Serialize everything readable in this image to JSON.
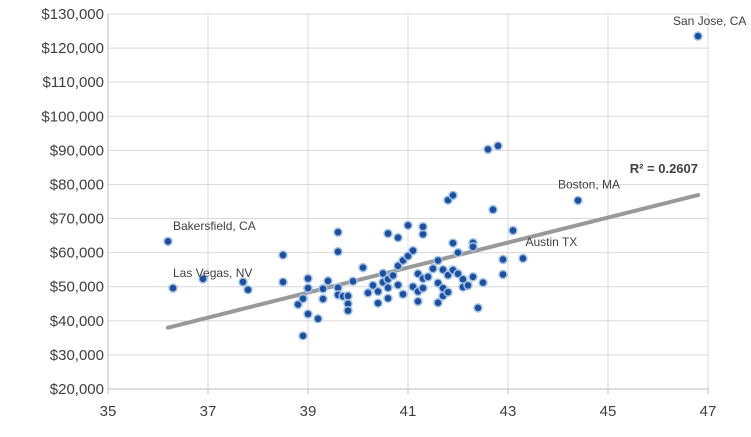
{
  "chart_data": {
    "type": "scatter",
    "title": "",
    "xlabel": "",
    "ylabel": "",
    "xlim": [
      35,
      47
    ],
    "ylim": [
      20000,
      130000
    ],
    "grid": true,
    "x_ticks": [
      {
        "value": 35,
        "label": "35"
      },
      {
        "value": 37,
        "label": "37"
      },
      {
        "value": 39,
        "label": "39"
      },
      {
        "value": 41,
        "label": "41"
      },
      {
        "value": 43,
        "label": "43"
      },
      {
        "value": 45,
        "label": "45"
      },
      {
        "value": 47,
        "label": "47"
      }
    ],
    "y_ticks": [
      {
        "value": 20000,
        "label": "$20,000"
      },
      {
        "value": 30000,
        "label": "$30,000"
      },
      {
        "value": 40000,
        "label": "$40,000"
      },
      {
        "value": 50000,
        "label": "$50,000"
      },
      {
        "value": 60000,
        "label": "$60,000"
      },
      {
        "value": 70000,
        "label": "$70,000"
      },
      {
        "value": 80000,
        "label": "$80,000"
      },
      {
        "value": 90000,
        "label": "$90,000"
      },
      {
        "value": 100000,
        "label": "$100,000"
      },
      {
        "value": 110000,
        "label": "$110,000"
      },
      {
        "value": 120000,
        "label": "$120,000"
      },
      {
        "value": 130000,
        "label": "$130,000"
      }
    ],
    "colors": {
      "point_fill": "#1f4e9c",
      "point_stroke": "#9fc3e6",
      "trendline": "#999999",
      "grid": "#d9d9d9",
      "axis": "#bfbfbf"
    },
    "points": [
      {
        "x": 36.2,
        "y": 63300
      },
      {
        "x": 36.3,
        "y": 49600
      },
      {
        "x": 36.9,
        "y": 52300
      },
      {
        "x": 37.7,
        "y": 51400
      },
      {
        "x": 37.8,
        "y": 49100
      },
      {
        "x": 38.5,
        "y": 59300
      },
      {
        "x": 38.5,
        "y": 51400
      },
      {
        "x": 38.8,
        "y": 44800
      },
      {
        "x": 38.9,
        "y": 35600
      },
      {
        "x": 38.9,
        "y": 46500
      },
      {
        "x": 39.0,
        "y": 49400
      },
      {
        "x": 39.0,
        "y": 52400
      },
      {
        "x": 39.0,
        "y": 42000
      },
      {
        "x": 39.0,
        "y": 49600
      },
      {
        "x": 39.2,
        "y": 40600
      },
      {
        "x": 39.3,
        "y": 46400
      },
      {
        "x": 39.3,
        "y": 49400
      },
      {
        "x": 39.4,
        "y": 51700
      },
      {
        "x": 39.6,
        "y": 66000
      },
      {
        "x": 39.6,
        "y": 60300
      },
      {
        "x": 39.6,
        "y": 49700
      },
      {
        "x": 39.6,
        "y": 47600
      },
      {
        "x": 39.7,
        "y": 47200
      },
      {
        "x": 39.8,
        "y": 47300
      },
      {
        "x": 39.8,
        "y": 45000
      },
      {
        "x": 39.8,
        "y": 43000
      },
      {
        "x": 39.9,
        "y": 51600
      },
      {
        "x": 40.1,
        "y": 55600
      },
      {
        "x": 40.2,
        "y": 48200
      },
      {
        "x": 40.3,
        "y": 50400
      },
      {
        "x": 40.4,
        "y": 45200
      },
      {
        "x": 40.4,
        "y": 48600
      },
      {
        "x": 40.5,
        "y": 53900
      },
      {
        "x": 40.5,
        "y": 51300
      },
      {
        "x": 40.6,
        "y": 52200
      },
      {
        "x": 40.6,
        "y": 49700
      },
      {
        "x": 40.6,
        "y": 46600
      },
      {
        "x": 40.6,
        "y": 65600
      },
      {
        "x": 40.7,
        "y": 53300
      },
      {
        "x": 40.8,
        "y": 64400
      },
      {
        "x": 40.8,
        "y": 56100
      },
      {
        "x": 40.8,
        "y": 50500
      },
      {
        "x": 40.9,
        "y": 57700
      },
      {
        "x": 40.9,
        "y": 47800
      },
      {
        "x": 41.0,
        "y": 59000
      },
      {
        "x": 41.0,
        "y": 68000
      },
      {
        "x": 41.1,
        "y": 60600
      },
      {
        "x": 41.1,
        "y": 50000
      },
      {
        "x": 41.2,
        "y": 53800
      },
      {
        "x": 41.2,
        "y": 45700
      },
      {
        "x": 41.2,
        "y": 48600
      },
      {
        "x": 41.3,
        "y": 52400
      },
      {
        "x": 41.3,
        "y": 49600
      },
      {
        "x": 41.3,
        "y": 65400
      },
      {
        "x": 41.3,
        "y": 67600
      },
      {
        "x": 41.4,
        "y": 52900
      },
      {
        "x": 41.5,
        "y": 55300
      },
      {
        "x": 41.6,
        "y": 57700
      },
      {
        "x": 41.6,
        "y": 51100
      },
      {
        "x": 41.6,
        "y": 45300
      },
      {
        "x": 41.7,
        "y": 47300
      },
      {
        "x": 41.7,
        "y": 49600
      },
      {
        "x": 41.7,
        "y": 55000
      },
      {
        "x": 41.8,
        "y": 75400
      },
      {
        "x": 41.8,
        "y": 53400
      },
      {
        "x": 41.8,
        "y": 48400
      },
      {
        "x": 41.9,
        "y": 76800
      },
      {
        "x": 41.9,
        "y": 62800
      },
      {
        "x": 41.9,
        "y": 54900
      },
      {
        "x": 42.0,
        "y": 60000
      },
      {
        "x": 42.0,
        "y": 53800
      },
      {
        "x": 42.1,
        "y": 49900
      },
      {
        "x": 42.1,
        "y": 52200
      },
      {
        "x": 42.2,
        "y": 50400
      },
      {
        "x": 42.3,
        "y": 62900
      },
      {
        "x": 42.3,
        "y": 61700
      },
      {
        "x": 42.3,
        "y": 52900
      },
      {
        "x": 42.4,
        "y": 43800
      },
      {
        "x": 42.5,
        "y": 51200
      },
      {
        "x": 42.6,
        "y": 90300
      },
      {
        "x": 42.7,
        "y": 72600
      },
      {
        "x": 42.8,
        "y": 91300
      },
      {
        "x": 42.9,
        "y": 58000
      },
      {
        "x": 42.9,
        "y": 53600
      },
      {
        "x": 43.1,
        "y": 66500
      },
      {
        "x": 43.3,
        "y": 58300
      },
      {
        "x": 44.4,
        "y": 75300
      },
      {
        "x": 46.8,
        "y": 123500
      }
    ],
    "trendline": {
      "x": [
        36.2,
        46.8
      ],
      "y": [
        38000,
        76900
      ]
    },
    "r_squared_label": "R² = 0.2607",
    "annotations": [
      {
        "text": "San Jose, CA",
        "x": 46.3,
        "y": 126800
      },
      {
        "text": "Boston, MA",
        "x": 44.0,
        "y": 78800
      },
      {
        "text": "Austin TX",
        "x": 43.35,
        "y": 61900
      },
      {
        "text": "Bakersfield, CA",
        "x": 36.3,
        "y": 66600
      },
      {
        "text": "Las Vegas, NV",
        "x": 36.3,
        "y": 52800
      }
    ]
  }
}
